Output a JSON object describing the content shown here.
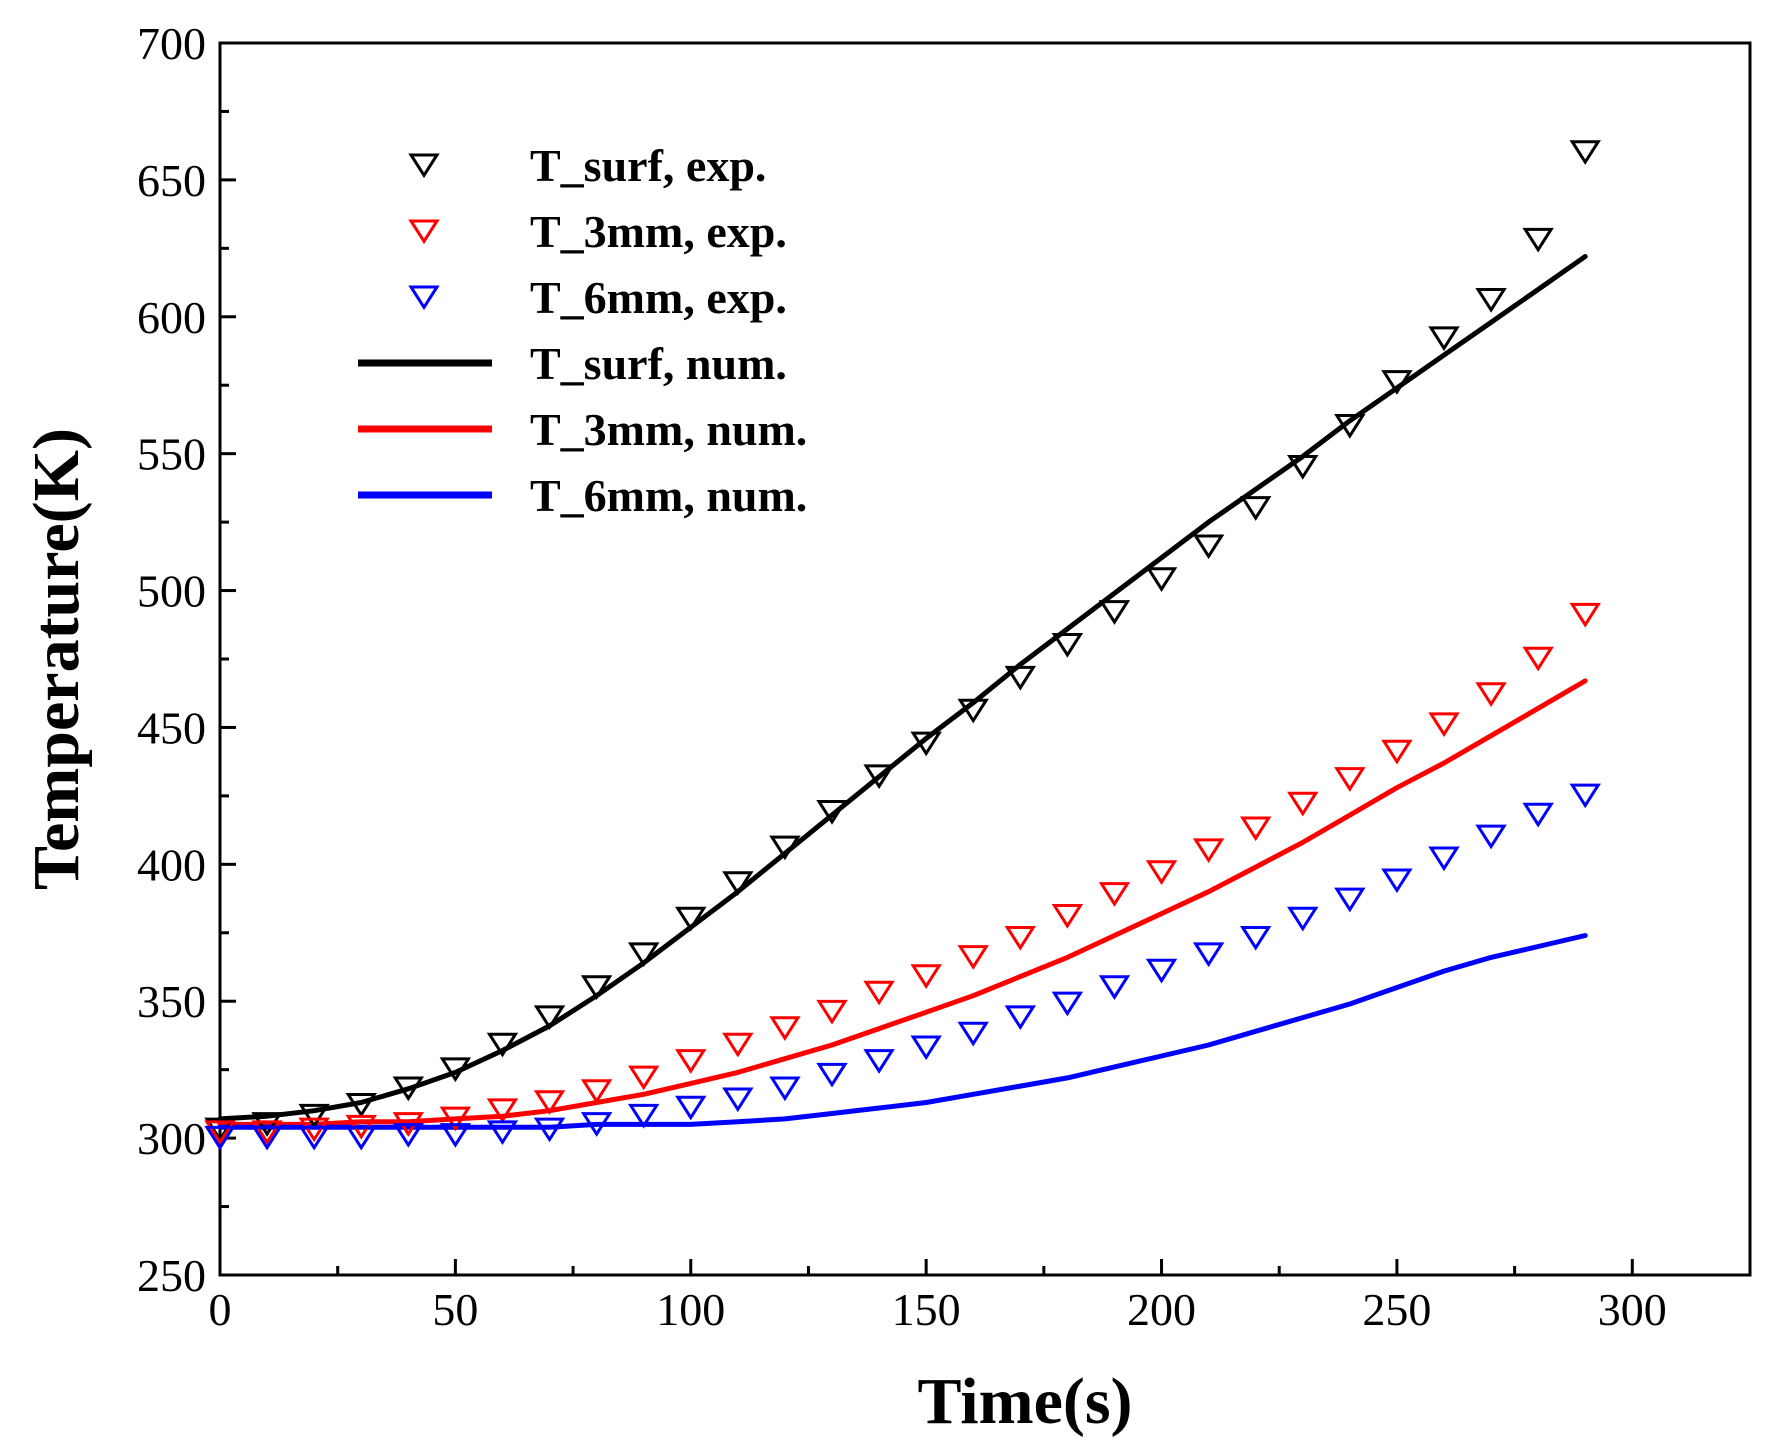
{
  "chart_data": {
    "type": "line",
    "title": "",
    "xlabel": "Time(s)",
    "ylabel": "Temperature(K)",
    "xlim": [
      0,
      325
    ],
    "ylim": [
      250,
      700
    ],
    "xticks": [
      0,
      50,
      100,
      150,
      200,
      250,
      300
    ],
    "yticks": [
      250,
      300,
      350,
      400,
      450,
      500,
      550,
      600,
      650,
      700
    ],
    "legend_position": "top-left",
    "series": [
      {
        "name": "T_surf, exp.",
        "kind": "marker",
        "marker": "triangle-down-open",
        "color": "#000000",
        "x": [
          0,
          10,
          20,
          30,
          40,
          50,
          60,
          70,
          80,
          90,
          100,
          110,
          120,
          130,
          140,
          150,
          160,
          170,
          180,
          190,
          200,
          210,
          220,
          230,
          240,
          250,
          260,
          270,
          280,
          290
        ],
        "y": [
          304,
          306,
          309,
          313,
          319,
          326,
          335,
          345,
          356,
          368,
          381,
          394,
          407,
          420,
          433,
          445,
          457,
          469,
          481,
          493,
          505,
          517,
          531,
          546,
          561,
          577,
          593,
          607,
          629,
          661
        ]
      },
      {
        "name": "T_3mm, exp.",
        "kind": "marker",
        "marker": "triangle-down-open",
        "color": "#ff0000",
        "x": [
          0,
          10,
          20,
          30,
          40,
          50,
          60,
          70,
          80,
          90,
          100,
          110,
          120,
          130,
          140,
          150,
          160,
          170,
          180,
          190,
          200,
          210,
          220,
          230,
          240,
          250,
          260,
          270,
          280,
          290
        ],
        "y": [
          303,
          303,
          304,
          305,
          306,
          308,
          311,
          314,
          318,
          323,
          329,
          335,
          341,
          347,
          354,
          360,
          367,
          374,
          382,
          390,
          398,
          406,
          414,
          423,
          432,
          442,
          452,
          463,
          476,
          492
        ]
      },
      {
        "name": "T_6mm, exp.",
        "kind": "marker",
        "marker": "triangle-down-open",
        "color": "#0000ff",
        "x": [
          0,
          10,
          20,
          30,
          40,
          50,
          60,
          70,
          80,
          90,
          100,
          110,
          120,
          130,
          140,
          150,
          160,
          170,
          180,
          190,
          200,
          210,
          220,
          230,
          240,
          250,
          260,
          270,
          280,
          290
        ],
        "y": [
          301,
          301,
          301,
          301,
          302,
          302,
          303,
          304,
          306,
          309,
          312,
          315,
          319,
          324,
          329,
          334,
          339,
          345,
          350,
          356,
          362,
          368,
          374,
          381,
          388,
          395,
          403,
          411,
          419,
          426
        ]
      },
      {
        "name": "T_surf, num.",
        "kind": "line",
        "color": "#000000",
        "x": [
          0,
          10,
          20,
          30,
          40,
          50,
          60,
          70,
          80,
          90,
          100,
          110,
          120,
          130,
          140,
          150,
          160,
          170,
          180,
          190,
          200,
          210,
          220,
          230,
          240,
          250,
          260,
          270,
          280,
          290
        ],
        "y": [
          307,
          308,
          310,
          313,
          318,
          324,
          332,
          341,
          352,
          364,
          377,
          390,
          404,
          418,
          432,
          446,
          459,
          473,
          486,
          499,
          512,
          525,
          537,
          549,
          562,
          574,
          586,
          598,
          610,
          622
        ]
      },
      {
        "name": "T_3mm, num.",
        "kind": "line",
        "color": "#ff0000",
        "x": [
          0,
          10,
          20,
          30,
          40,
          50,
          60,
          70,
          80,
          90,
          100,
          110,
          120,
          130,
          140,
          150,
          160,
          170,
          180,
          190,
          200,
          210,
          220,
          230,
          240,
          250,
          260,
          270,
          280,
          290
        ],
        "y": [
          305,
          305,
          305,
          306,
          306,
          307,
          308,
          310,
          313,
          316,
          320,
          324,
          329,
          334,
          340,
          346,
          352,
          359,
          366,
          374,
          382,
          390,
          399,
          408,
          418,
          428,
          437,
          447,
          457,
          467
        ]
      },
      {
        "name": "T_6mm, num.",
        "kind": "line",
        "color": "#0000ff",
        "x": [
          0,
          10,
          20,
          30,
          40,
          50,
          60,
          70,
          80,
          90,
          100,
          110,
          120,
          130,
          140,
          150,
          160,
          170,
          180,
          190,
          200,
          210,
          220,
          230,
          240,
          250,
          260,
          270,
          280,
          290
        ],
        "y": [
          304,
          304,
          304,
          304,
          304,
          304,
          304,
          304,
          305,
          305,
          305,
          306,
          307,
          309,
          311,
          313,
          316,
          319,
          322,
          326,
          330,
          334,
          339,
          344,
          349,
          355,
          361,
          366,
          370,
          374
        ]
      }
    ]
  }
}
